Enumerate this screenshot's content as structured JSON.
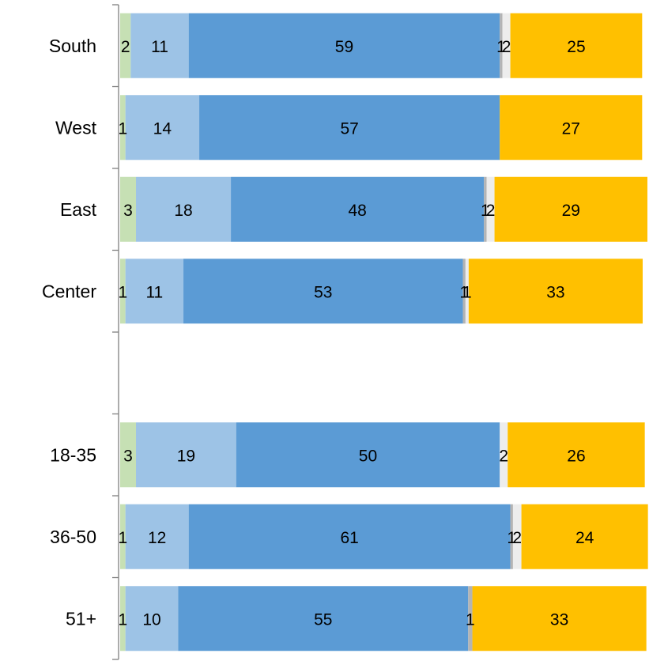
{
  "chart_data": {
    "type": "bar",
    "orientation": "horizontal",
    "stacked": true,
    "legend": "none",
    "grid": false,
    "xlim": [
      0,
      100
    ],
    "categories": [
      "South",
      "West",
      "East",
      "Center",
      "",
      "18-35",
      "36-50",
      "51+"
    ],
    "series": [
      {
        "color": "#c6e0b4",
        "values": [
          2,
          1,
          3,
          1,
          null,
          3,
          1,
          1
        ],
        "labels": [
          "2",
          "1",
          "3",
          "1",
          "",
          "3",
          "1",
          "1"
        ]
      },
      {
        "color": "#9dc3e6",
        "values": [
          11,
          14,
          18,
          11,
          null,
          19,
          12,
          10
        ],
        "labels": [
          "11",
          "14",
          "18",
          "11",
          "",
          "19",
          "12",
          "10"
        ]
      },
      {
        "color": "#5b9bd5",
        "values": [
          59,
          57,
          48,
          53,
          null,
          50,
          61,
          55
        ],
        "labels": [
          "59",
          "57",
          "48",
          "53",
          "",
          "50",
          "61",
          "55"
        ]
      },
      {
        "color": "#b4b4b4",
        "values": [
          0.5,
          0,
          0.5,
          0.5,
          null,
          0,
          0.5,
          0.8
        ],
        "labels": [
          "1",
          "",
          "1",
          "1",
          "",
          "",
          "1",
          "1"
        ]
      },
      {
        "color": "#ededed",
        "values": [
          1.5,
          0,
          1.5,
          0.6,
          null,
          1.5,
          1.6,
          0
        ],
        "labels": [
          "2",
          "",
          "2",
          "1",
          "",
          "2",
          "2",
          ""
        ]
      },
      {
        "color": "#ffc000",
        "values": [
          25,
          27,
          29,
          33,
          null,
          26,
          24,
          33
        ],
        "labels": [
          "25",
          "27",
          "29",
          "33",
          "",
          "26",
          "24",
          "33"
        ]
      }
    ]
  }
}
